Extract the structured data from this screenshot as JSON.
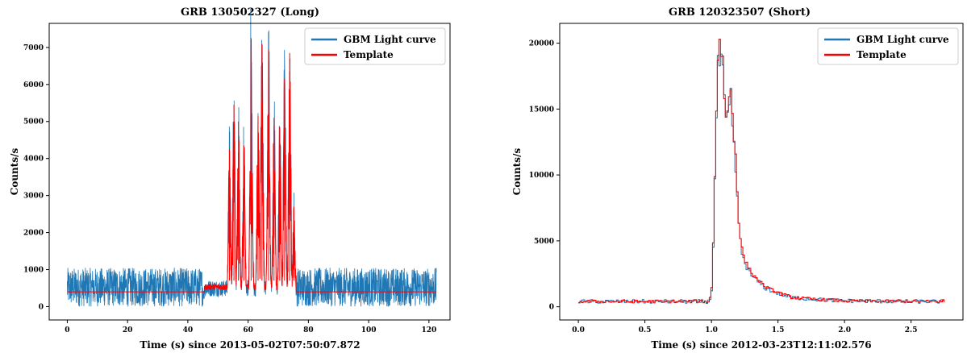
{
  "figure_title": "",
  "legend_labels": [
    "GBM Light curve",
    "Template"
  ],
  "colors": {
    "light_curve": "#1f77b4",
    "template": "#ff0000"
  },
  "chart_data": [
    {
      "type": "line",
      "title": "GRB 130502327 (Long)",
      "xlabel": "Time (s) since 2013-05-02T07:50:07.872",
      "ylabel": "Counts/s",
      "xlim": [
        -6,
        127
      ],
      "ylim": [
        -360,
        7650
      ],
      "xticks": [
        0,
        20,
        40,
        60,
        80,
        100,
        120
      ],
      "yticks": [
        0,
        1000,
        2000,
        3000,
        4000,
        5000,
        6000,
        7000
      ],
      "legend": "top-right",
      "grid": false,
      "series": [
        {
          "name": "GBM Light curve",
          "color": "#1f77b4",
          "duration": [
            0,
            122.5
          ],
          "background_level": 400,
          "noise_range": [
            0,
            1050
          ],
          "burst_window": [
            45,
            76
          ]
        },
        {
          "name": "Template",
          "color": "#ff0000",
          "background_level": 400,
          "active_window": [
            45.5,
            76
          ],
          "peaks": [
            {
              "x": 53.8,
              "y": 4250
            },
            {
              "x": 55.3,
              "y": 5450
            },
            {
              "x": 56.8,
              "y": 5000
            },
            {
              "x": 58.6,
              "y": 4350
            },
            {
              "x": 61.0,
              "y": 7250
            },
            {
              "x": 63.3,
              "y": 5150
            },
            {
              "x": 64.6,
              "y": 7100
            },
            {
              "x": 66.8,
              "y": 6950
            },
            {
              "x": 68.6,
              "y": 5100
            },
            {
              "x": 70.5,
              "y": 4850
            },
            {
              "x": 72.1,
              "y": 6150
            },
            {
              "x": 73.8,
              "y": 6850
            },
            {
              "x": 75.2,
              "y": 2700
            }
          ]
        }
      ]
    },
    {
      "type": "line",
      "title": "GRB 120323507 (Short)",
      "xlabel": "Time (s) since 2012-03-23T12:11:02.576",
      "ylabel": "Counts/s",
      "xlim": [
        -0.14,
        2.89
      ],
      "ylim": [
        -1000,
        21500
      ],
      "xticks": [
        0.0,
        0.5,
        1.0,
        1.5,
        2.0,
        2.5
      ],
      "yticks": [
        0,
        5000,
        10000,
        15000,
        20000
      ],
      "legend": "top-right",
      "grid": false,
      "series": [
        {
          "name": "GBM Light curve",
          "color": "#1f77b4",
          "x": [
            0,
            0.98,
            1.0,
            1.02,
            1.04,
            1.06,
            1.08,
            1.1,
            1.12,
            1.14,
            1.16,
            1.18,
            1.2,
            1.22,
            1.25,
            1.3,
            1.35,
            1.4,
            1.5,
            1.6,
            1.8,
            2.0,
            2.5,
            2.75
          ],
          "values": [
            400,
            400,
            1500,
            9500,
            17500,
            19000,
            17500,
            13500,
            14500,
            15500,
            12500,
            10000,
            6000,
            4200,
            3200,
            2300,
            1900,
            1400,
            1000,
            700,
            550,
            450,
            400,
            400
          ]
        },
        {
          "name": "Template",
          "color": "#ff0000",
          "x": [
            0,
            0.98,
            1.0,
            1.02,
            1.04,
            1.06,
            1.08,
            1.1,
            1.12,
            1.14,
            1.16,
            1.18,
            1.2,
            1.22,
            1.25,
            1.3,
            1.35,
            1.4,
            1.5,
            1.6,
            1.8,
            2.0,
            2.5,
            2.75
          ],
          "values": [
            400,
            400,
            1700,
            10000,
            18500,
            20500,
            18500,
            14500,
            15000,
            16500,
            13500,
            11000,
            6500,
            4500,
            3400,
            2500,
            2000,
            1500,
            1050,
            700,
            550,
            450,
            400,
            400
          ]
        }
      ]
    }
  ]
}
